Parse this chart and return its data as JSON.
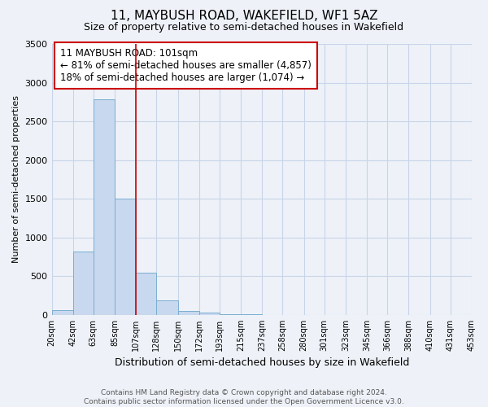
{
  "title_line1": "11, MAYBUSH ROAD, WAKEFIELD, WF1 5AZ",
  "title_line2": "Size of property relative to semi-detached houses in Wakefield",
  "xlabel": "Distribution of semi-detached houses by size in Wakefield",
  "ylabel": "Number of semi-detached properties",
  "footnote": "Contains HM Land Registry data © Crown copyright and database right 2024.\nContains public sector information licensed under the Open Government Licence v3.0.",
  "annotation_title": "11 MAYBUSH ROAD: 101sqm",
  "annotation_line2": "← 81% of semi-detached houses are smaller (4,857)",
  "annotation_line3": "18% of semi-detached houses are larger (1,074) →",
  "marker_bin_index": 4,
  "bin_edges": [
    20,
    42,
    63,
    85,
    107,
    128,
    150,
    172,
    193,
    215,
    237,
    258,
    280,
    301,
    323,
    345,
    366,
    388,
    410,
    431,
    453
  ],
  "bin_labels": [
    "20sqm",
    "42sqm",
    "63sqm",
    "85sqm",
    "107sqm",
    "128sqm",
    "150sqm",
    "172sqm",
    "193sqm",
    "215sqm",
    "237sqm",
    "258sqm",
    "280sqm",
    "301sqm",
    "323sqm",
    "345sqm",
    "366sqm",
    "388sqm",
    "410sqm",
    "431sqm",
    "453sqm"
  ],
  "bar_heights": [
    60,
    820,
    2780,
    1500,
    550,
    190,
    50,
    30,
    8,
    5,
    3,
    0,
    0,
    0,
    0,
    0,
    0,
    0,
    0,
    0
  ],
  "bar_color": "#c8d8ee",
  "bar_edge_color": "#7aaed0",
  "grid_color": "#c8d4e8",
  "background_color": "#eef2f8",
  "annotation_box_color": "#ffffff",
  "annotation_border_color": "#cc0000",
  "marker_line_color": "#cc0000",
  "ylim": [
    0,
    3500
  ],
  "yticks": [
    0,
    500,
    1000,
    1500,
    2000,
    2500,
    3000,
    3500
  ]
}
